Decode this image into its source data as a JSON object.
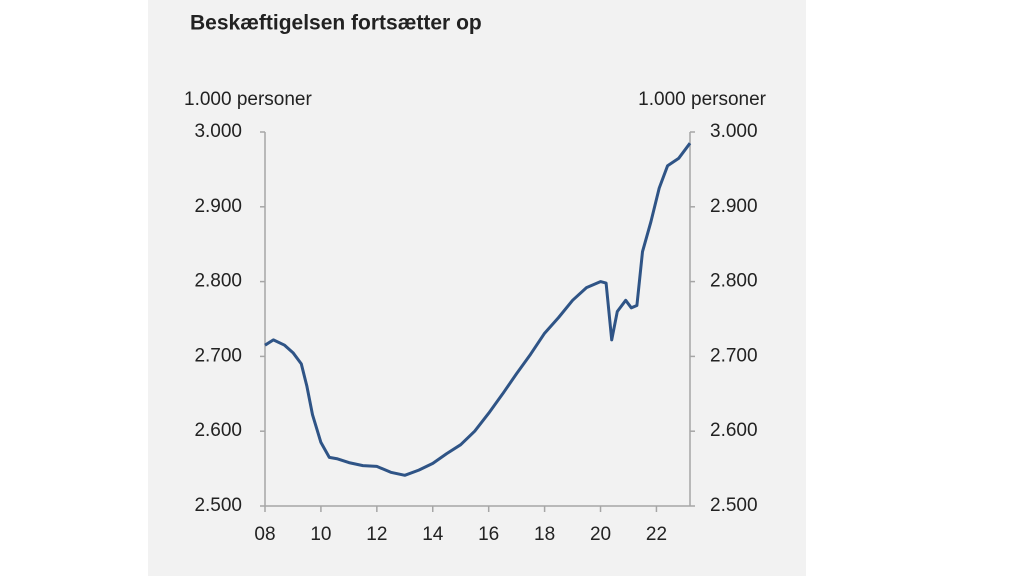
{
  "chart_data": {
    "type": "line",
    "title": "Beskæftigelsen fortsætter op",
    "y_label": "1.000 personer",
    "y2_label": "1.000 personer",
    "xlim": [
      2008,
      2023.2
    ],
    "xticks": [
      {
        "value": 2008,
        "label": "08"
      },
      {
        "value": 2010,
        "label": "10"
      },
      {
        "value": 2012,
        "label": "12"
      },
      {
        "value": 2014,
        "label": "14"
      },
      {
        "value": 2016,
        "label": "16"
      },
      {
        "value": 2018,
        "label": "18"
      },
      {
        "value": 2020,
        "label": "20"
      },
      {
        "value": 2022,
        "label": "22"
      }
    ],
    "ylim": [
      2500,
      3000
    ],
    "yticks": [
      {
        "value": 2500,
        "label": "2.500"
      },
      {
        "value": 2600,
        "label": "2.600"
      },
      {
        "value": 2700,
        "label": "2.700"
      },
      {
        "value": 2800,
        "label": "2.800"
      },
      {
        "value": 2900,
        "label": "2.900"
      },
      {
        "value": 3000,
        "label": "3.000"
      }
    ],
    "y2lim": [
      2500,
      3000
    ],
    "y2ticks": [
      {
        "value": 2500,
        "label": "2.500"
      },
      {
        "value": 2600,
        "label": "2.600"
      },
      {
        "value": 2700,
        "label": "2.700"
      },
      {
        "value": 2800,
        "label": "2.800"
      },
      {
        "value": 2900,
        "label": "2.900"
      },
      {
        "value": 3000,
        "label": "3.000"
      }
    ],
    "grid": false,
    "series": [
      {
        "color": "#2f5486",
        "x": [
          2008.0,
          2008.3,
          2008.7,
          2009.0,
          2009.3,
          2009.5,
          2009.7,
          2010.0,
          2010.3,
          2010.6,
          2011.0,
          2011.5,
          2012.0,
          2012.5,
          2013.0,
          2013.5,
          2014.0,
          2014.5,
          2015.0,
          2015.5,
          2016.0,
          2016.5,
          2017.0,
          2017.5,
          2018.0,
          2018.5,
          2019.0,
          2019.5,
          2020.0,
          2020.2,
          2020.4,
          2020.6,
          2020.9,
          2021.1,
          2021.3,
          2021.5,
          2021.8,
          2022.1,
          2022.4,
          2022.8,
          2023.2
        ],
        "values": [
          2715,
          2722,
          2715,
          2705,
          2690,
          2660,
          2622,
          2585,
          2565,
          2563,
          2558,
          2554,
          2553,
          2545,
          2541,
          2548,
          2557,
          2570,
          2582,
          2600,
          2624,
          2650,
          2677,
          2703,
          2731,
          2752,
          2775,
          2792,
          2800,
          2798,
          2722,
          2760,
          2775,
          2765,
          2768,
          2840,
          2880,
          2925,
          2955,
          2965,
          2985
        ]
      }
    ]
  }
}
